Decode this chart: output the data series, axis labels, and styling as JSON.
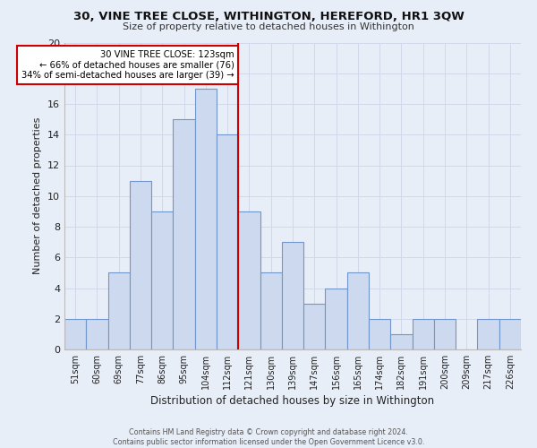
{
  "title": "30, VINE TREE CLOSE, WITHINGTON, HEREFORD, HR1 3QW",
  "subtitle": "Size of property relative to detached houses in Withington",
  "xlabel": "Distribution of detached houses by size in Withington",
  "ylabel": "Number of detached properties",
  "categories": [
    "51sqm",
    "60sqm",
    "69sqm",
    "77sqm",
    "86sqm",
    "95sqm",
    "104sqm",
    "112sqm",
    "121sqm",
    "130sqm",
    "139sqm",
    "147sqm",
    "156sqm",
    "165sqm",
    "174sqm",
    "182sqm",
    "191sqm",
    "200sqm",
    "209sqm",
    "217sqm",
    "226sqm"
  ],
  "values": [
    2,
    2,
    5,
    11,
    9,
    15,
    17,
    14,
    9,
    5,
    7,
    3,
    4,
    5,
    2,
    1,
    2,
    2,
    0,
    2,
    2
  ],
  "bar_color": "#ccd9ee",
  "bar_edge_color": "#7096cc",
  "property_line_idx": 8,
  "property_line_label": "30 VINE TREE CLOSE: 123sqm",
  "annotation_line1": "← 66% of detached houses are smaller (76)",
  "annotation_line2": "34% of semi-detached houses are larger (39) →",
  "annotation_box_facecolor": "#ffffff",
  "annotation_box_edgecolor": "#cc0000",
  "vline_color": "#cc0000",
  "ylim": [
    0,
    20
  ],
  "yticks": [
    0,
    2,
    4,
    6,
    8,
    10,
    12,
    14,
    16,
    18,
    20
  ],
  "grid_color": "#d0d8ea",
  "footer1": "Contains HM Land Registry data © Crown copyright and database right 2024.",
  "footer2": "Contains public sector information licensed under the Open Government Licence v3.0.",
  "bg_color": "#e8eef8"
}
